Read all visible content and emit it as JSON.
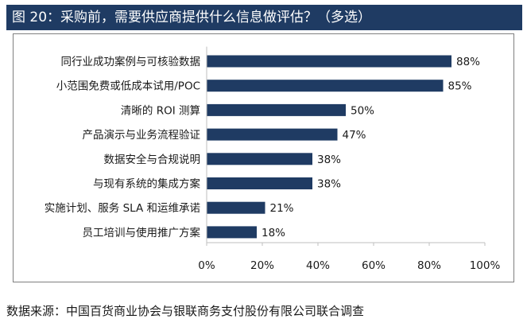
{
  "header": {
    "title": "图 20：采购前，需要供应商提供什么信息做评估？（多选）"
  },
  "source": "数据来源：中国百货商业协会与银联商务支付股份有限公司联合调查",
  "colors": {
    "bar": "#1f3b63",
    "header_bg": "#1f3b63",
    "axis": "#bfbfbf"
  },
  "chart_data": {
    "type": "bar",
    "orientation": "horizontal",
    "title": "采购前，需要供应商提供什么信息做评估？（多选）",
    "categories": [
      "同行业成功案例与可核验数据",
      "小范围免费或低成本试用/POC",
      "清晰的 ROI 测算",
      "产品演示与业务流程验证",
      "数据安全与合规说明",
      "与现有系统的集成方案",
      "实施计划、服务 SLA 和运维承诺",
      "员工培训与使用推广方案"
    ],
    "values": [
      88,
      85,
      50,
      47,
      38,
      38,
      21,
      18
    ],
    "value_labels": [
      "88%",
      "85%",
      "50%",
      "47%",
      "38%",
      "38%",
      "21%",
      "18%"
    ],
    "xlim": [
      0,
      100
    ],
    "ticks": [
      0,
      20,
      40,
      60,
      80,
      100
    ],
    "tick_labels": [
      "0%",
      "20%",
      "40%",
      "60%",
      "80%",
      "100%"
    ],
    "grid": false,
    "legend": "none"
  }
}
